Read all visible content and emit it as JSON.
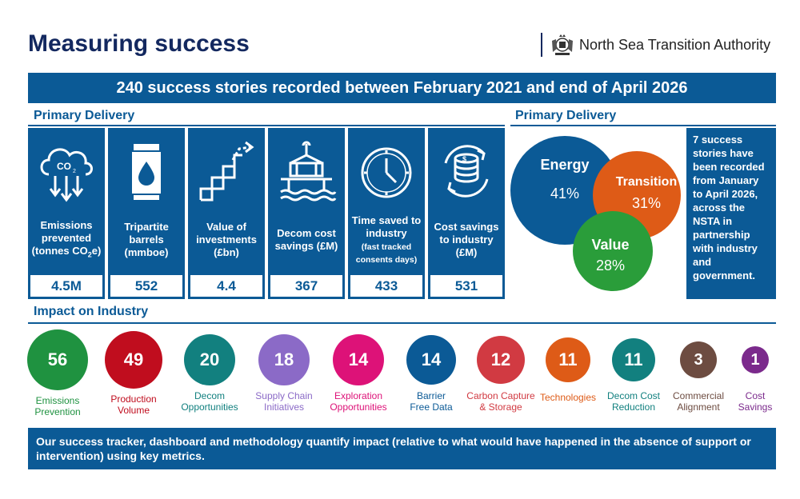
{
  "header": {
    "title": "Measuring success",
    "logo_text": "North Sea Transition Authority"
  },
  "banner": "240 success stories recorded between February 2021 and end of April 2026",
  "primary_delivery": {
    "heading": "Primary Delivery",
    "metrics": [
      {
        "label": "Emissions prevented (tonnes CO",
        "sub": "2",
        "label_end": "e)",
        "value": "4.5M",
        "icon": "co2-cloud-icon"
      },
      {
        "label": "Tripartite barrels (mmboe)",
        "value": "552",
        "icon": "oil-barrel-icon"
      },
      {
        "label": "Value of investments (£bn)",
        "value": "4.4",
        "icon": "rising-stairs-icon"
      },
      {
        "label": "Decom cost savings (£M)",
        "value": "367",
        "icon": "platform-crane-icon"
      },
      {
        "label": "Time saved to industry",
        "small": "(fast tracked consents days)",
        "value": "433",
        "icon": "clock-icon"
      },
      {
        "label": "Cost savings to industry (£M)",
        "value": "531",
        "icon": "coin-stack-icon"
      }
    ]
  },
  "venn_section": {
    "heading": "Primary Delivery",
    "circles": [
      {
        "name": "Energy",
        "pct": "41%",
        "color": "#0b5a96"
      },
      {
        "name": "Transition",
        "pct": "31%",
        "color": "#de5b17"
      },
      {
        "name": "Value",
        "pct": "28%",
        "color": "#2a9d3a"
      }
    ],
    "side_text": "7 success stories have been recorded from January to April 2026, across the NSTA in partnership with industry and government."
  },
  "impact": {
    "heading": "Impact on Industry",
    "items": [
      {
        "value": "56",
        "line1": "Emissions",
        "line2": "Prevention",
        "color": "#1f9240"
      },
      {
        "value": "49",
        "line1": "Production",
        "line2": "Volume",
        "color": "#c00d1e"
      },
      {
        "value": "20",
        "line1": "Decom",
        "line2": "Opportunities",
        "color": "#12807f"
      },
      {
        "value": "18",
        "line1": "Supply Chain",
        "line2": "Initiatives",
        "color": "#8b6ac7"
      },
      {
        "value": "14",
        "line1": "Exploration",
        "line2": "Opportunities",
        "color": "#dd1278"
      },
      {
        "value": "14",
        "line1": "Barrier",
        "line2": "Free Data",
        "color": "#0b5a96"
      },
      {
        "value": "12",
        "line1": "Carbon Capture",
        "line2": "& Storage",
        "color": "#d13a42"
      },
      {
        "value": "11",
        "line1": "Technologies",
        "line2": "",
        "color": "#de5b17"
      },
      {
        "value": "11",
        "line1": "Decom Cost",
        "line2": "Reduction",
        "color": "#12807f"
      },
      {
        "value": "3",
        "line1": "Commercial",
        "line2": "Alignment",
        "color": "#6d4c41"
      },
      {
        "value": "1",
        "line1": "Cost",
        "line2": "Savings",
        "color": "#7b2a8c"
      }
    ]
  },
  "footer": "Our success tracker, dashboard and methodology quantify impact (relative to what would have happened in the absence of support or intervention) using key metrics."
}
